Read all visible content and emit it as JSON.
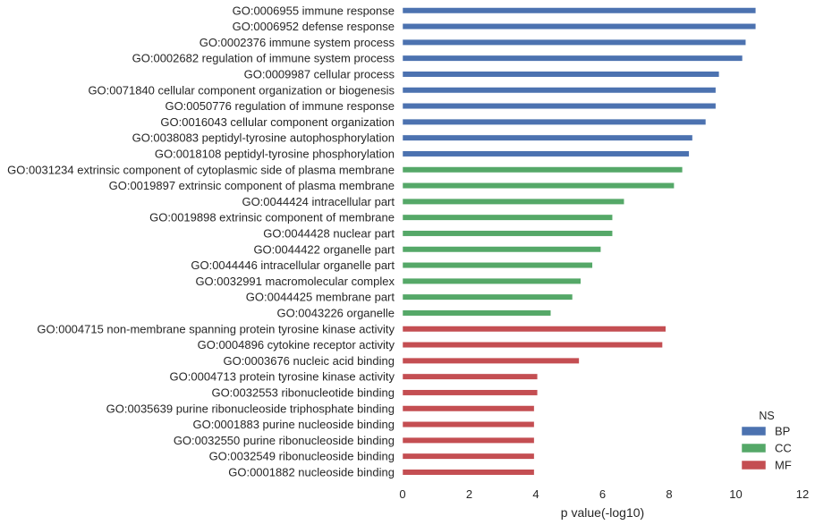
{
  "chart_data": {
    "type": "bar",
    "orientation": "horizontal",
    "categories": [
      "GO:0006955 immune response",
      "GO:0006952 defense response",
      "GO:0002376 immune system process",
      "GO:0002682 regulation of immune system process",
      "GO:0009987 cellular process",
      "GO:0071840 cellular component organization or biogenesis",
      "GO:0050776 regulation of immune response",
      "GO:0016043 cellular component organization",
      "GO:0038083 peptidyl-tyrosine autophosphorylation",
      "GO:0018108 peptidyl-tyrosine phosphorylation",
      "GO:0031234 extrinsic component of cytoplasmic side of plasma membrane",
      "GO:0019897 extrinsic component of plasma membrane",
      "GO:0044424 intracellular part",
      "GO:0019898 extrinsic component of membrane",
      "GO:0044428 nuclear part",
      "GO:0044422 organelle part",
      "GO:0044446 intracellular organelle part",
      "GO:0032991 macromolecular complex",
      "GO:0044425 membrane part",
      "GO:0043226 organelle",
      "GO:0004715 non-membrane spanning protein tyrosine kinase activity",
      "GO:0004896 cytokine receptor activity",
      "GO:0003676 nucleic acid binding",
      "GO:0004713 protein tyrosine kinase activity",
      "GO:0032553 ribonucleotide binding",
      "GO:0035639 purine ribonucleoside triphosphate binding",
      "GO:0001883 purine nucleoside binding",
      "GO:0032550 purine ribonucleoside binding",
      "GO:0032549 ribonucleoside binding",
      "GO:0001882 nucleoside binding"
    ],
    "values": [
      10.6,
      10.6,
      10.3,
      10.2,
      9.5,
      9.4,
      9.4,
      9.1,
      8.7,
      8.6,
      8.4,
      8.15,
      6.65,
      6.3,
      6.3,
      5.95,
      5.7,
      5.35,
      5.1,
      4.45,
      7.9,
      7.8,
      5.3,
      4.05,
      4.05,
      3.95,
      3.95,
      3.95,
      3.95,
      3.95
    ],
    "groups": [
      "BP",
      "BP",
      "BP",
      "BP",
      "BP",
      "BP",
      "BP",
      "BP",
      "BP",
      "BP",
      "CC",
      "CC",
      "CC",
      "CC",
      "CC",
      "CC",
      "CC",
      "CC",
      "CC",
      "CC",
      "MF",
      "MF",
      "MF",
      "MF",
      "MF",
      "MF",
      "MF",
      "MF",
      "MF",
      "MF"
    ],
    "xlabel": "p value(-log10)",
    "ylabel": "",
    "title": "",
    "xlim": [
      0,
      12
    ],
    "xticks": [
      0,
      2,
      4,
      6,
      8,
      10,
      12
    ],
    "grid": false,
    "legend": {
      "title": "NS",
      "position": "bottom-right",
      "entries": [
        {
          "name": "BP",
          "color": "#4c72b0"
        },
        {
          "name": "CC",
          "color": "#55a868"
        },
        {
          "name": "MF",
          "color": "#c44e52"
        }
      ]
    }
  }
}
